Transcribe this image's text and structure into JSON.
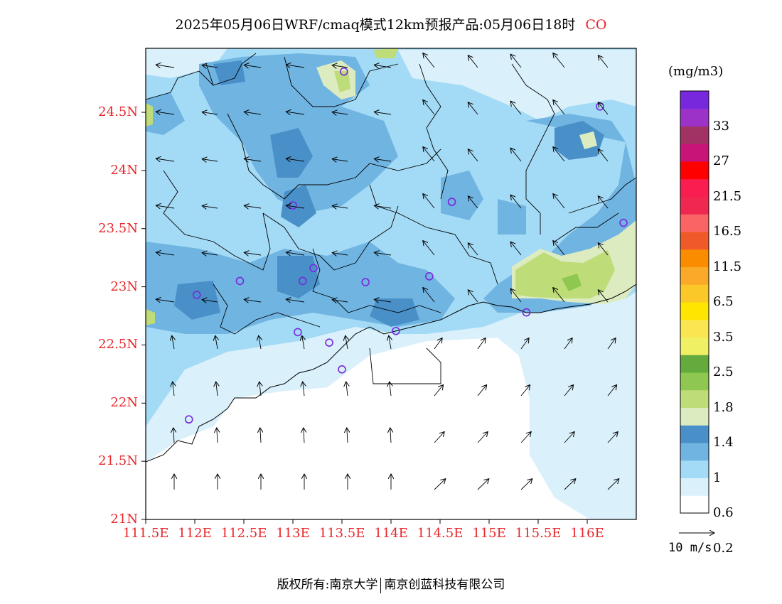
{
  "title": {
    "text": "2025年05月06日WRF/cmaq模式12km预报产品:05月06日18时",
    "species": "CO",
    "species_color": "#e8262b"
  },
  "axes": {
    "lat_ticks": [
      "24.5N",
      "24N",
      "23.5N",
      "23N",
      "22.5N",
      "22N",
      "21.5N",
      "21N"
    ],
    "lat_values": [
      24.5,
      24.0,
      23.5,
      23.0,
      22.5,
      22.0,
      21.5,
      21.0
    ],
    "lon_ticks": [
      "111.5E",
      "112E",
      "112.5E",
      "113E",
      "113.5E",
      "114E",
      "114.5E",
      "115E",
      "115.5E",
      "116E"
    ],
    "lon_values": [
      111.5,
      112.0,
      112.5,
      113.0,
      113.5,
      114.0,
      114.5,
      115.0,
      115.5,
      116.0
    ],
    "lat_range": [
      21.0,
      25.05
    ],
    "lon_range": [
      111.5,
      116.5
    ],
    "tick_color": "#e8262b"
  },
  "colorbar": {
    "unit": "(mg/m3)",
    "labels": [
      "33",
      "27",
      "21.5",
      "16.5",
      "11.5",
      "6.5",
      "3.5",
      "2.5",
      "1.8",
      "1.4",
      "1",
      "0.6",
      "0.2"
    ],
    "colors": [
      "#ffffff",
      "#daf0fb",
      "#a3daf5",
      "#70b4e2",
      "#4a90c8",
      "#dcecc0",
      "#bedc78",
      "#8ec850",
      "#64aa3c",
      "#f0f064",
      "#fae650",
      "#ffe600",
      "#fac828",
      "#faaa28",
      "#fa8c00",
      "#f05a28",
      "#fa6464",
      "#f02850",
      "#fa1e50",
      "#ff0000",
      "#c81478",
      "#a03264",
      "#9c32c8",
      "#7828dc"
    ]
  },
  "wind_legend": {
    "label": "10 m/s"
  },
  "sites": [
    {
      "lon": 113.52,
      "lat": 24.85
    },
    {
      "lon": 116.13,
      "lat": 24.55
    },
    {
      "lon": 113.0,
      "lat": 23.7
    },
    {
      "lon": 114.62,
      "lat": 23.73
    },
    {
      "lon": 116.37,
      "lat": 23.55
    },
    {
      "lon": 112.46,
      "lat": 23.05
    },
    {
      "lon": 113.1,
      "lat": 23.05
    },
    {
      "lon": 113.21,
      "lat": 23.16
    },
    {
      "lon": 113.74,
      "lat": 23.04
    },
    {
      "lon": 114.39,
      "lat": 23.09
    },
    {
      "lon": 112.02,
      "lat": 22.93
    },
    {
      "lon": 113.05,
      "lat": 22.61
    },
    {
      "lon": 113.37,
      "lat": 22.52
    },
    {
      "lon": 113.5,
      "lat": 22.29
    },
    {
      "lon": 114.05,
      "lat": 22.62
    },
    {
      "lon": 115.38,
      "lat": 22.78
    },
    {
      "lon": 111.94,
      "lat": 21.86
    }
  ],
  "footer": {
    "left": "版权所有:南京大学",
    "right": "南京创蓝科技有限公司"
  }
}
